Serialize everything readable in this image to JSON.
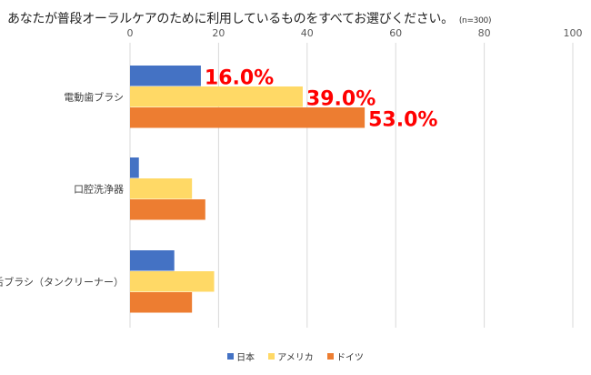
{
  "chart_data": {
    "type": "bar",
    "orientation": "horizontal",
    "title": "あなたが普段オーラルケアのために利用しているものをすべてお選びください。",
    "note": "(n=300)",
    "categories": [
      "電動歯ブラシ",
      "口腔洗浄器",
      "舌ブラシ（タンクリーナー）"
    ],
    "series": [
      {
        "name": "日本",
        "color": "#4472C4",
        "values": [
          16,
          2,
          10
        ]
      },
      {
        "name": "アメリカ",
        "color": "#FFD966",
        "values": [
          39,
          14,
          19
        ]
      },
      {
        "name": "ドイツ",
        "color": "#ED7D31",
        "values": [
          53,
          17,
          14
        ]
      }
    ],
    "xlim": [
      0,
      100
    ],
    "x_ticks": [
      "0",
      "20",
      "40",
      "60",
      "80",
      "100"
    ],
    "grid": true,
    "legend_position": "bottom",
    "annotations": [
      {
        "text": "16.0%",
        "series": 0,
        "category": 0
      },
      {
        "text": "39.0%",
        "series": 1,
        "category": 0
      },
      {
        "text": "53.0%",
        "series": 2,
        "category": 0
      }
    ],
    "annotation_color": "#FF0000"
  }
}
